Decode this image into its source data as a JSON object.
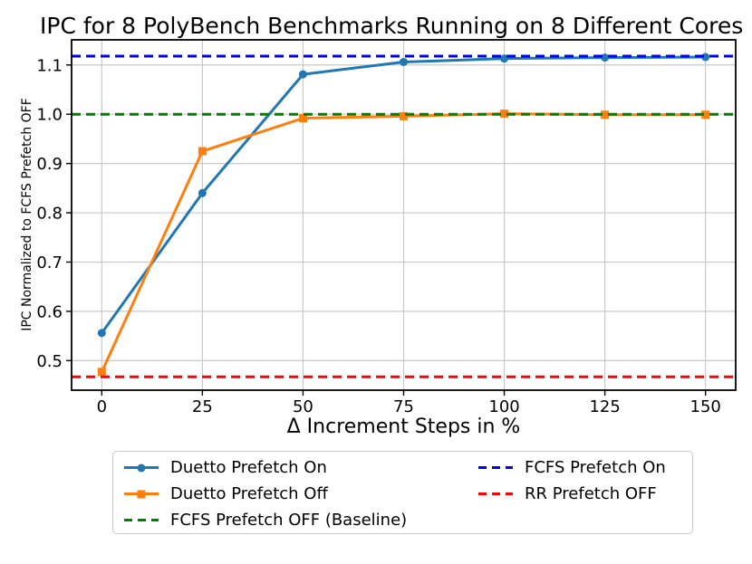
{
  "title": "IPC for 8 PolyBench Benchmarks Running on 8 Different Cores",
  "chart_data": {
    "type": "line",
    "title": "IPC for 8 PolyBench Benchmarks Running on 8 Different Cores",
    "xlabel": "Δ Increment Steps in %",
    "ylabel": "IPC Normalized to FCFS Prefetch OFF",
    "x": [
      0,
      25,
      50,
      75,
      100,
      125,
      150
    ],
    "x_ticks": [
      0,
      25,
      50,
      75,
      100,
      125,
      150
    ],
    "y_ticks": [
      0.5,
      0.6,
      0.7,
      0.8,
      0.9,
      1.0,
      1.1
    ],
    "xlim": [
      -7.5,
      157.5
    ],
    "ylim": [
      0.44,
      1.151
    ],
    "grid": true,
    "legend_position": "below-chart",
    "series": [
      {
        "name": "Duetto Prefetch On",
        "color": "#1f77b4",
        "marker": "circle",
        "line_style": "solid",
        "values": [
          0.556,
          0.84,
          1.081,
          1.106,
          1.113,
          1.115,
          1.116
        ]
      },
      {
        "name": "Duetto Prefetch Off",
        "color": "#ff7f0e",
        "marker": "square",
        "line_style": "solid",
        "values": [
          0.477,
          0.925,
          0.992,
          0.996,
          1.001,
          0.999,
          0.999
        ]
      }
    ],
    "hlines": [
      {
        "name": "FCFS Prefetch On",
        "color": "#0000ff",
        "value": 1.118,
        "line_style": "dashed"
      },
      {
        "name": "FCFS Prefetch OFF (Baseline)",
        "color": "#008000",
        "value": 1.0,
        "line_style": "dashed"
      },
      {
        "name": "RR Prefetch OFF",
        "color": "#ff0000",
        "value": 0.467,
        "line_style": "dashed"
      }
    ]
  },
  "legend": {
    "items": [
      {
        "label": "Duetto Prefetch On",
        "color": "#1f77b4",
        "swatch": "line-circle"
      },
      {
        "label": "Duetto Prefetch Off",
        "color": "#ff7f0e",
        "swatch": "line-square"
      },
      {
        "label": "FCFS Prefetch OFF (Baseline)",
        "color": "#008000",
        "swatch": "dashed"
      },
      {
        "label": "FCFS Prefetch On",
        "color": "#0000ff",
        "swatch": "dashed"
      },
      {
        "label": "RR Prefetch OFF",
        "color": "#ff0000",
        "swatch": "dashed"
      }
    ]
  },
  "colors": {
    "grid": "#c9c9c9",
    "axes_border": "#000000",
    "background": "#ffffff",
    "text": "#000000"
  }
}
